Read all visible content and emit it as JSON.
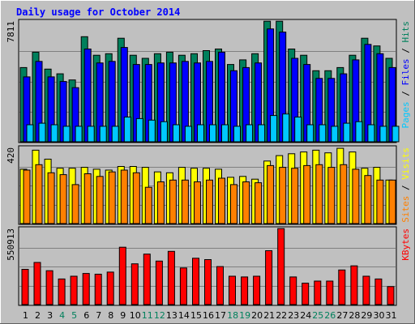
{
  "colors": {
    "background": "#c0c0c0",
    "title": "#0000ff",
    "hits": "#00805c",
    "files": "#0000ff",
    "pages": "#00c8ff",
    "visits": "#ffff00",
    "sites": "#ff8000",
    "kbytes": "#ff0000",
    "weekday_label": "#000000",
    "weekend_label": "#00805c"
  },
  "chart_data": {
    "type": "bar",
    "title": "Daily usage for October 2014",
    "categories": [
      "1",
      "2",
      "3",
      "4",
      "5",
      "6",
      "7",
      "8",
      "9",
      "10",
      "11",
      "12",
      "13",
      "14",
      "15",
      "16",
      "17",
      "18",
      "19",
      "20",
      "21",
      "22",
      "23",
      "24",
      "25",
      "26",
      "27",
      "28",
      "29",
      "30",
      "31"
    ],
    "weekend_days": [
      "4",
      "5",
      "11",
      "12",
      "18",
      "19",
      "25",
      "26"
    ],
    "panels": [
      {
        "name": "hits-files-pages",
        "ymax_label": "7811",
        "ylim": [
          0,
          7811
        ],
        "side_label": [
          {
            "text": "Pages",
            "color": "#00c8ff"
          },
          {
            "text": " / ",
            "color": "#000000"
          },
          {
            "text": "Files",
            "color": "#0000ff"
          },
          {
            "text": " / ",
            "color": "#000000"
          },
          {
            "text": "Hits",
            "color": "#00805c"
          }
        ],
        "series": [
          {
            "name": "Hits",
            "color": "#00805c",
            "values": [
              4800,
              5800,
              4700,
              4400,
              4000,
              6800,
              5600,
              5700,
              6700,
              5600,
              5400,
              5700,
              5800,
              5600,
              5700,
              5900,
              6000,
              5000,
              5300,
              5700,
              7800,
              7800,
              6000,
              5600,
              4600,
              4600,
              4800,
              5600,
              6700,
              6200,
              5400
            ]
          },
          {
            "name": "Files",
            "color": "#0000ff",
            "values": [
              4200,
              5200,
              4200,
              3900,
              3500,
              6000,
              5100,
              5200,
              6100,
              5000,
              5000,
              5100,
              5100,
              5200,
              5100,
              5200,
              5800,
              4600,
              4800,
              5100,
              7300,
              7100,
              5400,
              5000,
              4100,
              4100,
              4400,
              5300,
              6300,
              5700,
              4800
            ]
          },
          {
            "name": "Pages",
            "color": "#00c8ff",
            "values": [
              1100,
              1200,
              1100,
              1000,
              1000,
              1000,
              1000,
              1000,
              1600,
              1500,
              1400,
              1300,
              1100,
              1000,
              1100,
              1100,
              1100,
              1000,
              1100,
              1100,
              1700,
              1800,
              1600,
              1100,
              1100,
              1000,
              1200,
              1300,
              1100,
              1000,
              1000
            ]
          }
        ]
      },
      {
        "name": "visits-sites",
        "ymax_label": "420",
        "ylim": [
          0,
          420
        ],
        "side_label": [
          {
            "text": "Sites",
            "color": "#ff8000"
          },
          {
            "text": " / ",
            "color": "#000000"
          },
          {
            "text": "Visits",
            "color": "#ffff00"
          }
        ],
        "series": [
          {
            "name": "Visits",
            "color": "#ffff00",
            "values": [
              300,
              405,
              355,
              305,
              305,
              310,
              300,
              295,
              315,
              315,
              310,
              285,
              280,
              310,
              305,
              305,
              300,
              255,
              260,
              245,
              345,
              375,
              385,
              395,
              405,
              390,
              415,
              395,
              305,
              310,
              240
            ]
          },
          {
            "name": "Sites",
            "color": "#ff8000",
            "values": [
              295,
              325,
              280,
              270,
              215,
              275,
              260,
              285,
              295,
              280,
              200,
              230,
              240,
              240,
              230,
              240,
              250,
              215,
              230,
              225,
              320,
              310,
              305,
              320,
              325,
              310,
              325,
              300,
              265,
              240,
              240
            ]
          }
        ]
      },
      {
        "name": "kbytes",
        "ymax_label": "550913",
        "ylim": [
          0,
          550913
        ],
        "side_label": [
          {
            "text": "KBytes",
            "color": "#ff0000"
          }
        ],
        "series": [
          {
            "name": "KBytes",
            "color": "#ff0000",
            "values": [
              255000,
              305000,
              245000,
              185000,
              205000,
              225000,
              220000,
              235000,
              415000,
              295000,
              365000,
              315000,
              385000,
              265000,
              335000,
              325000,
              275000,
              205000,
              200000,
              205000,
              390000,
              550000,
              200000,
              155000,
              170000,
              170000,
              250000,
              280000,
              205000,
              185000,
              130000
            ]
          }
        ]
      }
    ]
  }
}
